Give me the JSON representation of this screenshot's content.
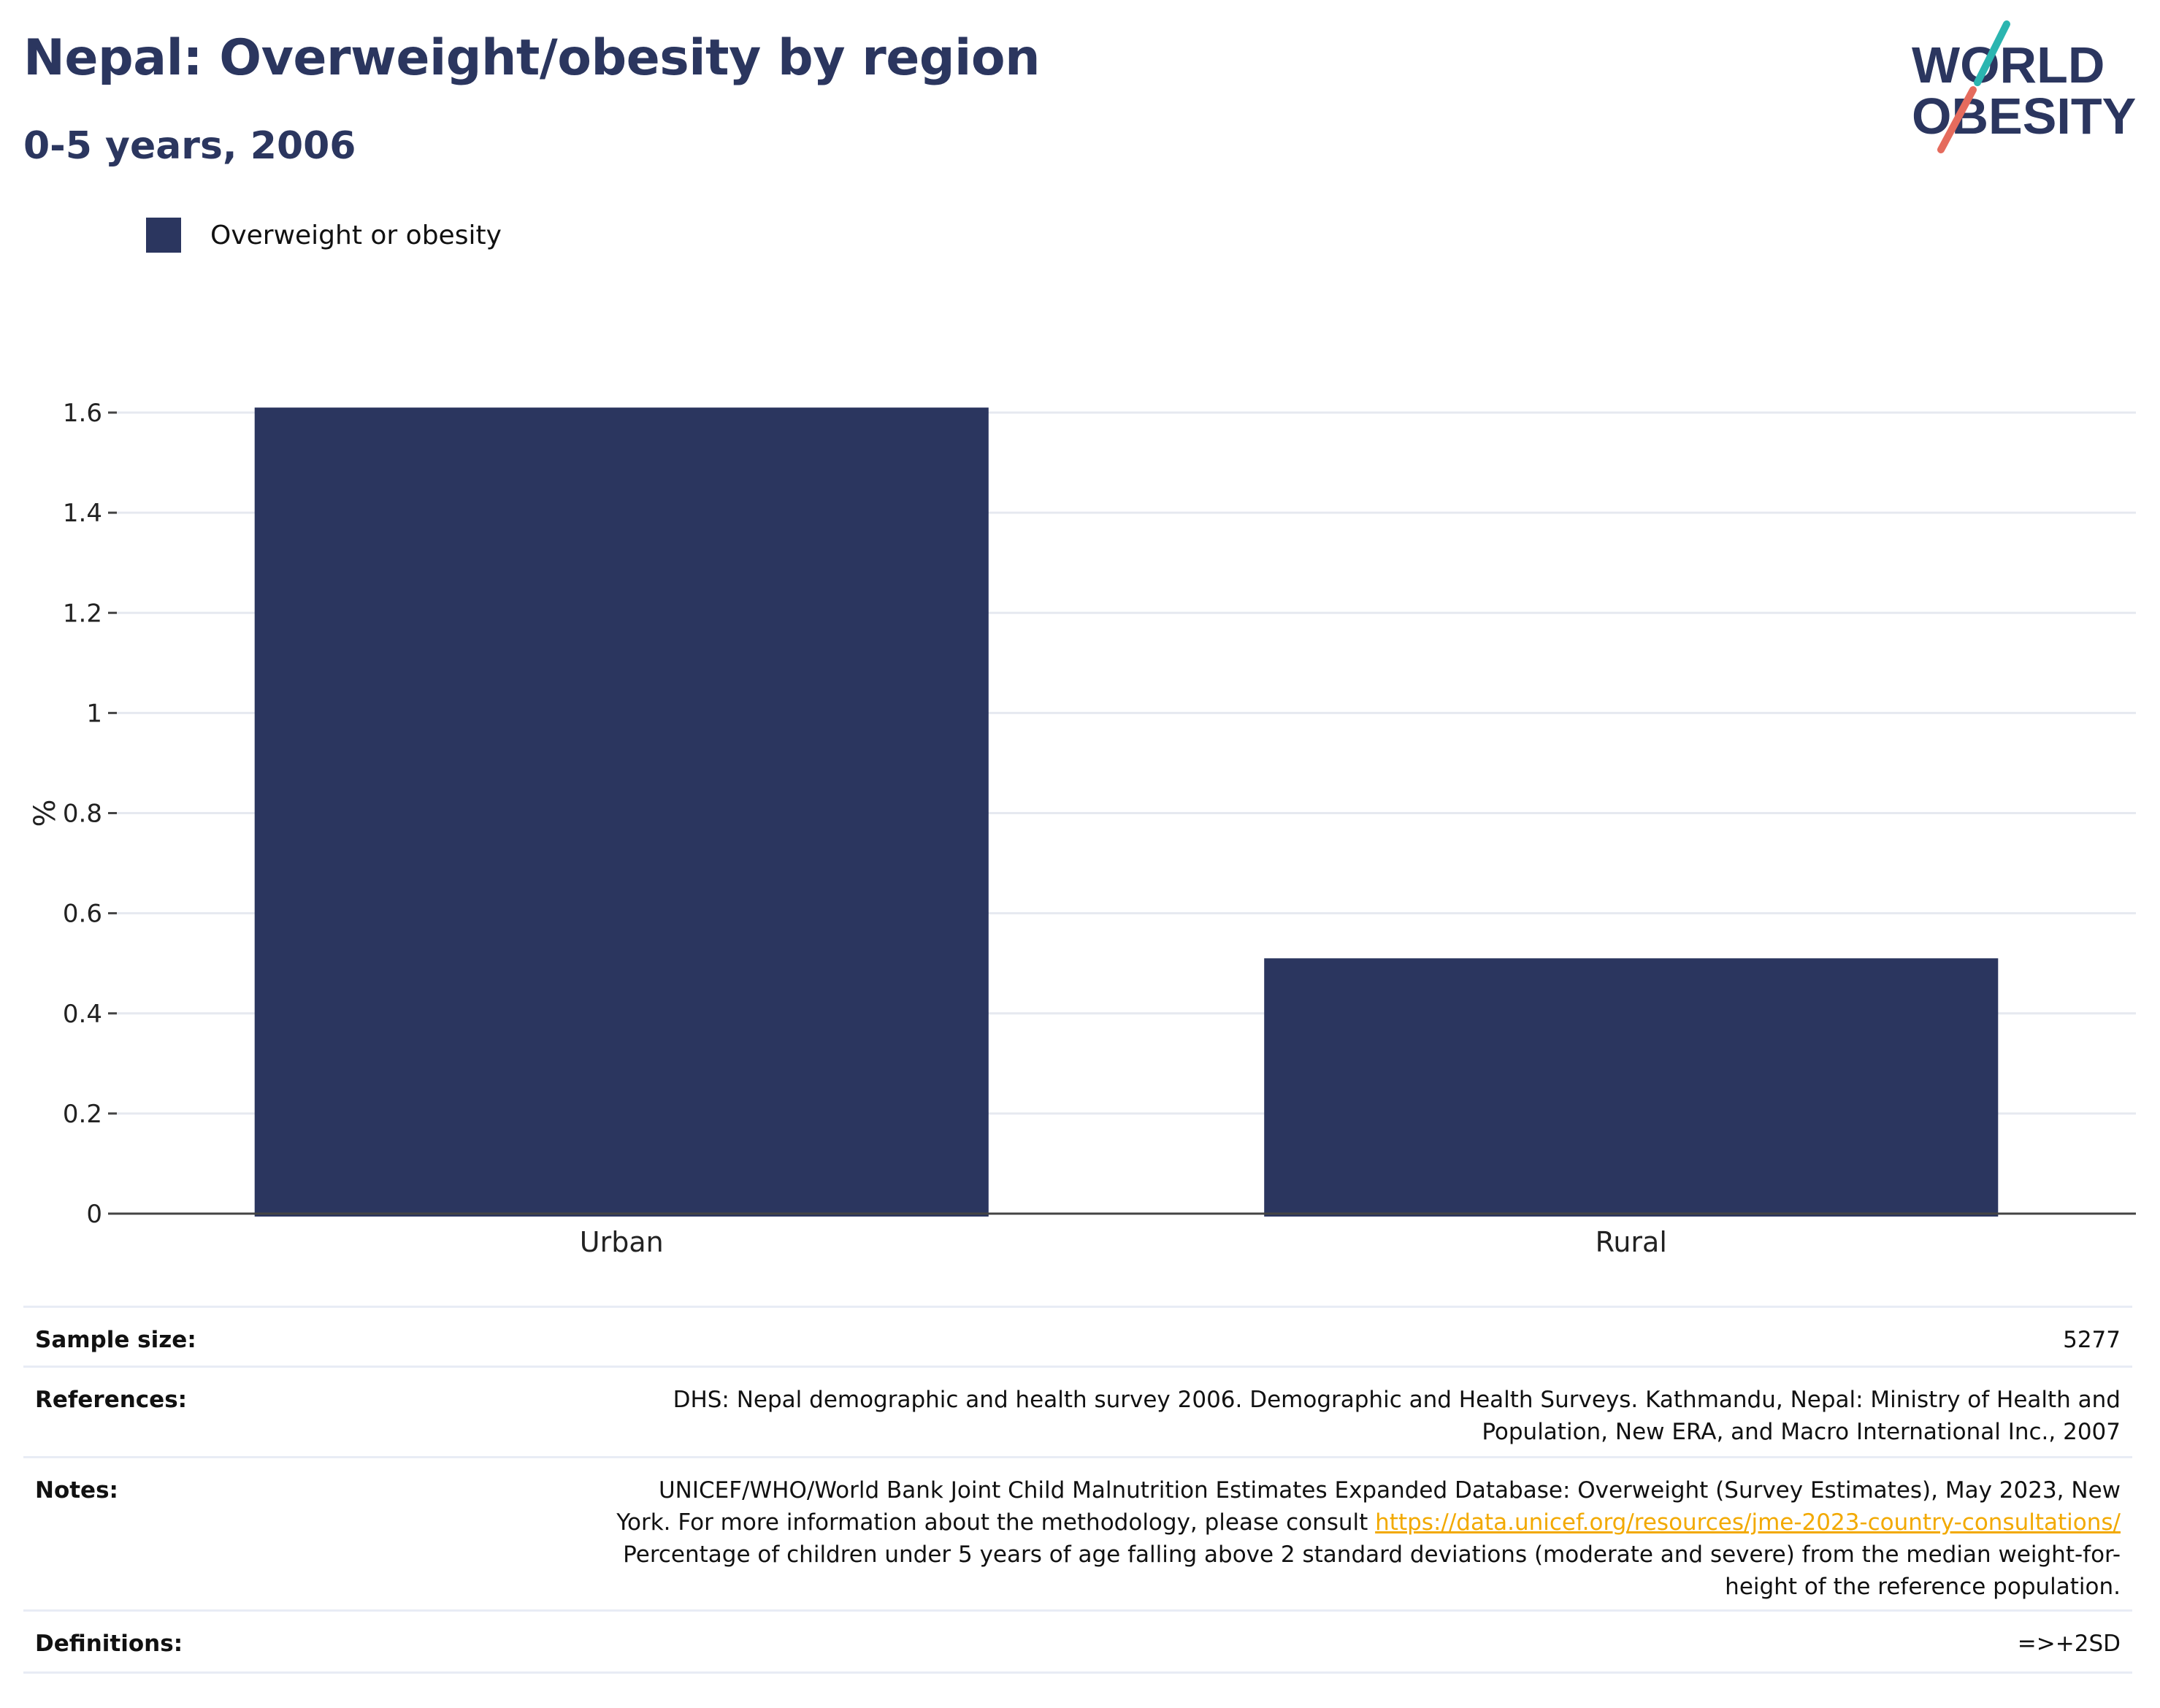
{
  "header": {
    "title": "Nepal: Overweight/obesity by region",
    "subtitle": "0-5 years, 2006"
  },
  "logo": {
    "line1": "WORLD",
    "line2": "OBESITY",
    "text_color": "#2b365f",
    "slash_teal": "#2bb5b0",
    "slash_coral": "#e56b5d"
  },
  "legend": {
    "label": "Overweight or obesity",
    "color": "#2b365f"
  },
  "chart_data": {
    "type": "bar",
    "categories": [
      "Urban",
      "Rural"
    ],
    "series": [
      {
        "name": "Overweight or obesity",
        "values": [
          1.61,
          0.51
        ],
        "color": "#2b365f"
      }
    ],
    "ylabel": "%",
    "ylim": [
      0,
      1.6
    ],
    "yticks": [
      "0",
      "0.2",
      "0.4",
      "0.6",
      "0.8",
      "1",
      "1.2",
      "1.4",
      "1.6"
    ],
    "grid": true,
    "legend_position": "top-left"
  },
  "meta": {
    "sample_size": {
      "key": "Sample size:",
      "value": "5277"
    },
    "references": {
      "key": "References:",
      "line1": "DHS: Nepal demographic and health survey 2006. Demographic and Health Surveys. Kathmandu, Nepal: Ministry of Health and",
      "line2": "Population, New ERA, and Macro International Inc., 2007"
    },
    "notes": {
      "key": "Notes:",
      "line1": "UNICEF/WHO/World Bank Joint Child Malnutrition Estimates Expanded Database: Overweight (Survey Estimates), May 2023, New",
      "line2_prefix": "York. For more information about the methodology, please consult ",
      "link": "https://data.unicef.org/resources/jme-2023-country-consultations/",
      "line3": "Percentage of children under 5 years of age falling above 2 standard deviations (moderate and severe) from the median weight-for-",
      "line4": "height of the reference population."
    },
    "definitions": {
      "key": "Definitions:",
      "value": "=>+2SD"
    }
  }
}
